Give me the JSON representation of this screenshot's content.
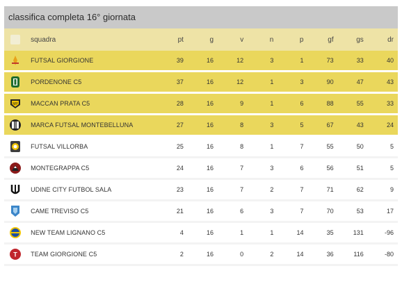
{
  "title": "classifica completa 16° giornata",
  "columns": {
    "team": "squadra",
    "pt": "pt",
    "g": "g",
    "v": "v",
    "n": "n",
    "p": "p",
    "gf": "gf",
    "gs": "gs",
    "dr": "dr"
  },
  "colors": {
    "header_bg": "#c9c9c9",
    "highlight": "#ead75c",
    "header_row": "#eee3a6"
  },
  "rows": [
    {
      "icon": "futsal-giorgione-crest-icon",
      "team": "FUTSAL GIORGIONE",
      "pt": "39",
      "g": "16",
      "v": "12",
      "n": "3",
      "p": "1",
      "gf": "73",
      "gs": "33",
      "dr": "40",
      "highlight": true
    },
    {
      "icon": "pordenone-crest-icon",
      "team": "PORDENONE C5",
      "pt": "37",
      "g": "16",
      "v": "12",
      "n": "1",
      "p": "3",
      "gf": "90",
      "gs": "47",
      "dr": "43",
      "highlight": true
    },
    {
      "icon": "maccan-prata-crest-icon",
      "team": "MACCAN PRATA C5",
      "pt": "28",
      "g": "16",
      "v": "9",
      "n": "1",
      "p": "6",
      "gf": "88",
      "gs": "55",
      "dr": "33",
      "highlight": true
    },
    {
      "icon": "marca-futsal-crest-icon",
      "team": "MARCA FUTSAL MONTEBELLUNA",
      "pt": "27",
      "g": "16",
      "v": "8",
      "n": "3",
      "p": "5",
      "gf": "67",
      "gs": "43",
      "dr": "24",
      "highlight": true
    },
    {
      "icon": "futsal-villorba-crest-icon",
      "team": "FUTSAL VILLORBA",
      "pt": "25",
      "g": "16",
      "v": "8",
      "n": "1",
      "p": "7",
      "gf": "55",
      "gs": "50",
      "dr": "5",
      "highlight": false
    },
    {
      "icon": "montegrappa-crest-icon",
      "team": "MONTEGRAPPA C5",
      "pt": "24",
      "g": "16",
      "v": "7",
      "n": "3",
      "p": "6",
      "gf": "56",
      "gs": "51",
      "dr": "5",
      "highlight": false
    },
    {
      "icon": "udine-city-crest-icon",
      "team": "UDINE CITY FUTBOL SALA",
      "pt": "23",
      "g": "16",
      "v": "7",
      "n": "2",
      "p": "7",
      "gf": "71",
      "gs": "62",
      "dr": "9",
      "highlight": false
    },
    {
      "icon": "came-treviso-crest-icon",
      "team": "CAME TREVISO C5",
      "pt": "21",
      "g": "16",
      "v": "6",
      "n": "3",
      "p": "7",
      "gf": "70",
      "gs": "53",
      "dr": "17",
      "highlight": false
    },
    {
      "icon": "new-team-lignano-crest-icon",
      "team": "NEW TEAM LIGNANO C5",
      "pt": "4",
      "g": "16",
      "v": "1",
      "n": "1",
      "p": "14",
      "gf": "35",
      "gs": "131",
      "dr": "-96",
      "highlight": false
    },
    {
      "icon": "team-giorgione-crest-icon",
      "team": "TEAM GIORGIONE C5",
      "pt": "2",
      "g": "16",
      "v": "0",
      "n": "2",
      "p": "14",
      "gf": "36",
      "gs": "116",
      "dr": "-80",
      "highlight": false
    }
  ]
}
